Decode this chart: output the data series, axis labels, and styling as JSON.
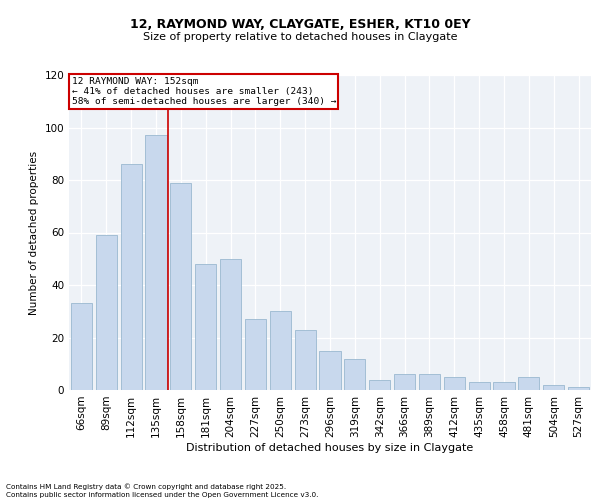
{
  "title1": "12, RAYMOND WAY, CLAYGATE, ESHER, KT10 0EY",
  "title2": "Size of property relative to detached houses in Claygate",
  "xlabel": "Distribution of detached houses by size in Claygate",
  "ylabel": "Number of detached properties",
  "categories": [
    "66sqm",
    "89sqm",
    "112sqm",
    "135sqm",
    "158sqm",
    "181sqm",
    "204sqm",
    "227sqm",
    "250sqm",
    "273sqm",
    "296sqm",
    "319sqm",
    "342sqm",
    "366sqm",
    "389sqm",
    "412sqm",
    "435sqm",
    "458sqm",
    "481sqm",
    "504sqm",
    "527sqm"
  ],
  "values": [
    33,
    59,
    86,
    97,
    79,
    48,
    50,
    27,
    30,
    23,
    15,
    12,
    4,
    6,
    6,
    5,
    3,
    3,
    5,
    2,
    1
  ],
  "bar_color": "#c8d8ed",
  "bar_edge_color": "#9ab8d0",
  "ylim": [
    0,
    120
  ],
  "property_label": "12 RAYMOND WAY: 152sqm",
  "annotation_line1": "← 41% of detached houses are smaller (243)",
  "annotation_line2": "58% of semi-detached houses are larger (340) →",
  "vline_x_index": 3.5,
  "box_color": "#cc0000",
  "background_color": "#eef2f7",
  "footer1": "Contains HM Land Registry data © Crown copyright and database right 2025.",
  "footer2": "Contains public sector information licensed under the Open Government Licence v3.0."
}
